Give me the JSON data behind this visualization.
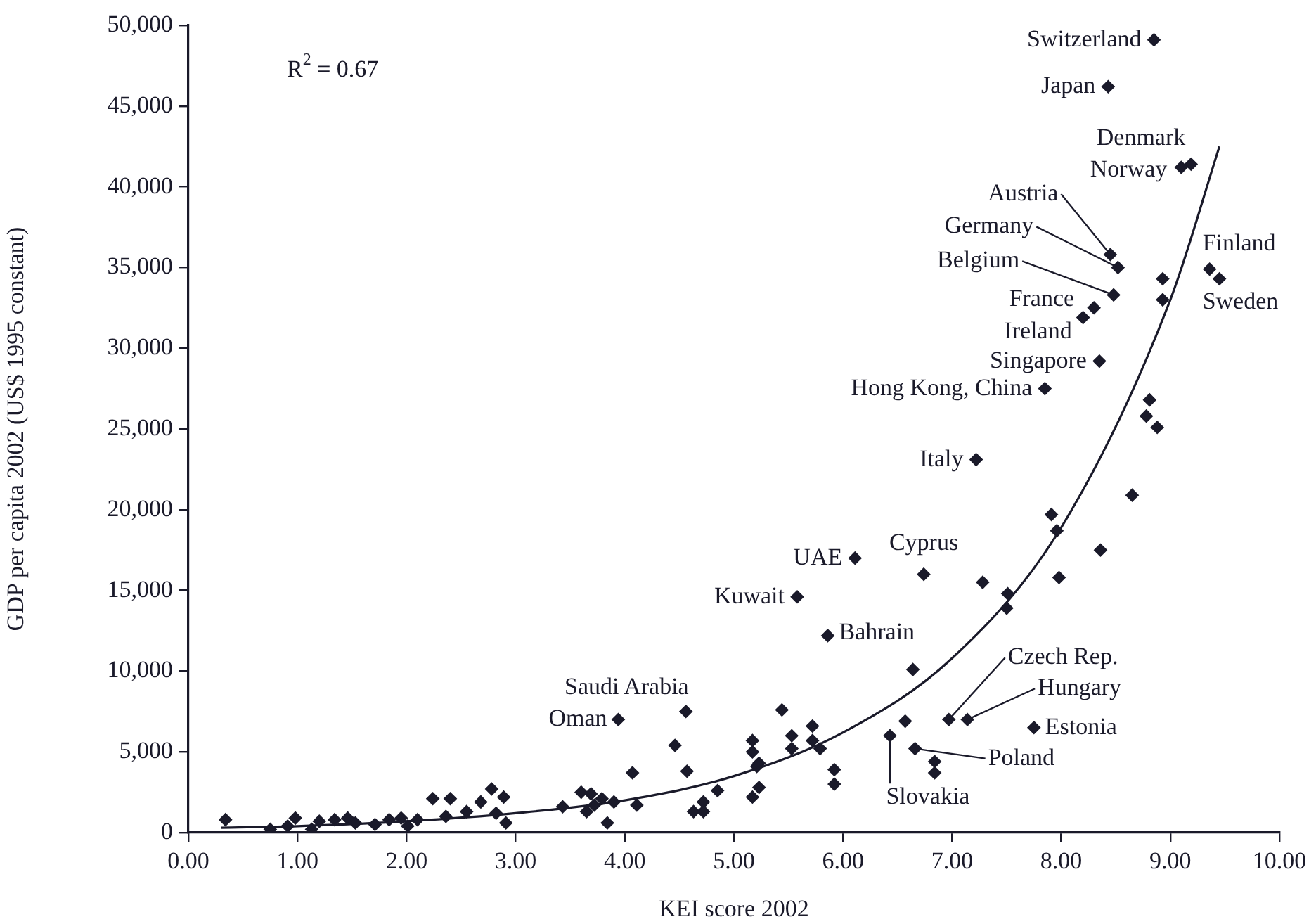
{
  "chart_data": {
    "type": "scatter",
    "xlabel": "KEI score 2002",
    "ylabel": "GDP per capita 2002 (US$ 1995 constant)",
    "xlim": [
      0,
      10
    ],
    "ylim": [
      0,
      50000
    ],
    "xticks": [
      {
        "value": 0,
        "label": "0.00"
      },
      {
        "value": 1,
        "label": "1.00"
      },
      {
        "value": 2,
        "label": "2.00"
      },
      {
        "value": 3,
        "label": "3.00"
      },
      {
        "value": 4,
        "label": "4.00"
      },
      {
        "value": 5,
        "label": "5.00"
      },
      {
        "value": 6,
        "label": "6.00"
      },
      {
        "value": 7,
        "label": "7.00"
      },
      {
        "value": 8,
        "label": "8.00"
      },
      {
        "value": 9,
        "label": "9.00"
      },
      {
        "value": 10,
        "label": "10.00"
      }
    ],
    "yticks": [
      0,
      {
        "value": 5000,
        "label": "5,000"
      },
      {
        "value": 10000,
        "label": "10,000"
      },
      {
        "value": 15000,
        "label": "15,000"
      },
      {
        "value": 20000,
        "label": "20,000"
      },
      {
        "value": 25000,
        "label": "25,000"
      },
      {
        "value": 30000,
        "label": "30,000"
      },
      {
        "value": 35000,
        "label": "35,000"
      },
      {
        "value": 40000,
        "label": "40,000"
      },
      {
        "value": 45000,
        "label": "45,000"
      },
      {
        "value": 50000,
        "label": "50,000"
      }
    ],
    "marker": "diamond",
    "legend": false,
    "series": [
      {
        "color": "#1a1a2a",
        "x": [
          8.85,
          8.43,
          9.19,
          9.1,
          8.45,
          8.52,
          8.48,
          8.3,
          8.2,
          9.36,
          9.45,
          8.93,
          8.93,
          8.35,
          7.85,
          8.81,
          8.78,
          8.88,
          7.22,
          8.65,
          7.91,
          7.96,
          8.36,
          7.98,
          7.51,
          7.5,
          6.11,
          6.74,
          7.28,
          5.58,
          5.86,
          6.64,
          6.97,
          7.14,
          7.75,
          6.66,
          6.84,
          6.84,
          6.43,
          6.57,
          4.56,
          3.94,
          5.44,
          4.46,
          4.57,
          5.17,
          5.17,
          5.21,
          5.23,
          5.53,
          5.53,
          5.72,
          5.72,
          5.79,
          5.92,
          5.92,
          4.85,
          4.72,
          5.23,
          5.17,
          4.11,
          4.63,
          4.72,
          4.07,
          0.34,
          0.75,
          0.91,
          0.98,
          1.13,
          1.2,
          1.34,
          1.46,
          1.53,
          1.71,
          1.84,
          1.95,
          2.01,
          2.1,
          2.24,
          2.4,
          2.36,
          2.55,
          2.68,
          2.78,
          2.89,
          2.82,
          2.91,
          3.43,
          3.6,
          3.69,
          3.65,
          3.72,
          3.84,
          3.9,
          3.79
        ],
        "values": [
          49100,
          46200,
          41400,
          41200,
          35800,
          35000,
          33300,
          32500,
          31900,
          34900,
          34300,
          34300,
          33000,
          29200,
          27500,
          26800,
          25800,
          25100,
          23100,
          20900,
          19700,
          18700,
          17500,
          15800,
          14800,
          13900,
          17000,
          16000,
          15500,
          14600,
          12200,
          10100,
          7000,
          7000,
          6500,
          5200,
          4400,
          3700,
          6000,
          6900,
          7500,
          7000,
          7600,
          5400,
          3800,
          5700,
          5000,
          4100,
          4300,
          6000,
          5200,
          6600,
          5700,
          5200,
          3900,
          3000,
          2600,
          1900,
          2800,
          2200,
          1700,
          1300,
          1300,
          3700,
          800,
          200,
          400,
          900,
          200,
          700,
          800,
          900,
          600,
          500,
          800,
          900,
          400,
          800,
          2100,
          2100,
          1000,
          1300,
          1900,
          2700,
          2200,
          1200,
          600,
          1600,
          2500,
          2400,
          1300,
          1700,
          600,
          1900,
          2100
        ]
      },
      {
        "type": "line",
        "color": "#1a1a2a",
        "marker": "none",
        "x": [
          0.3,
          1,
          2,
          3,
          4,
          5,
          6,
          7,
          8,
          9,
          9.45
        ],
        "values": [
          300,
          400,
          700,
          1200,
          2000,
          3500,
          6200,
          10800,
          18900,
          33000,
          42500
        ]
      }
    ],
    "annotations": [
      "R$^{2}$ = 0.67",
      {
        "text": "Switzerland",
        "x": 8.85,
        "y": 49100
      },
      {
        "text": "Japan",
        "x": 8.43,
        "y": 46200
      },
      {
        "text": "Denmark",
        "x": 9.19,
        "y": 41400
      },
      {
        "text": "Norway",
        "x": 9.1,
        "y": 41200
      },
      {
        "text": "Austria",
        "x": 8.45,
        "y": 35800
      },
      {
        "text": "Germany",
        "x": 8.52,
        "y": 35000
      },
      {
        "text": "Belgium",
        "x": 8.48,
        "y": 33300
      },
      {
        "text": "France",
        "x": 8.3,
        "y": 32500
      },
      {
        "text": "Ireland",
        "x": 8.2,
        "y": 31900
      },
      {
        "text": "Finland",
        "x": 9.36,
        "y": 34900
      },
      {
        "text": "Sweden",
        "x": 9.45,
        "y": 34300
      },
      {
        "text": "Singapore",
        "x": 8.35,
        "y": 29200
      },
      {
        "text": "Hong Kong, China",
        "x": 7.85,
        "y": 27500
      },
      {
        "text": "Italy",
        "x": 7.22,
        "y": 23100
      },
      {
        "text": "UAE",
        "x": 6.11,
        "y": 17000
      },
      {
        "text": "Cyprus",
        "x": 6.74,
        "y": 16000
      },
      {
        "text": "Kuwait",
        "x": 5.58,
        "y": 14600
      },
      {
        "text": "Bahrain",
        "x": 5.86,
        "y": 12200
      },
      {
        "text": "Saudi Arabia",
        "x": 4.56,
        "y": 7500
      },
      {
        "text": "Oman",
        "x": 3.94,
        "y": 7000
      },
      {
        "text": "Czech Rep.",
        "x": 6.97,
        "y": 7000
      },
      {
        "text": "Hungary",
        "x": 7.14,
        "y": 7000
      },
      {
        "text": "Estonia",
        "x": 7.75,
        "y": 6500
      },
      {
        "text": "Poland",
        "x": 6.66,
        "y": 5200
      },
      {
        "text": "Slovakia",
        "x": 6.43,
        "y": 6000
      }
    ]
  }
}
